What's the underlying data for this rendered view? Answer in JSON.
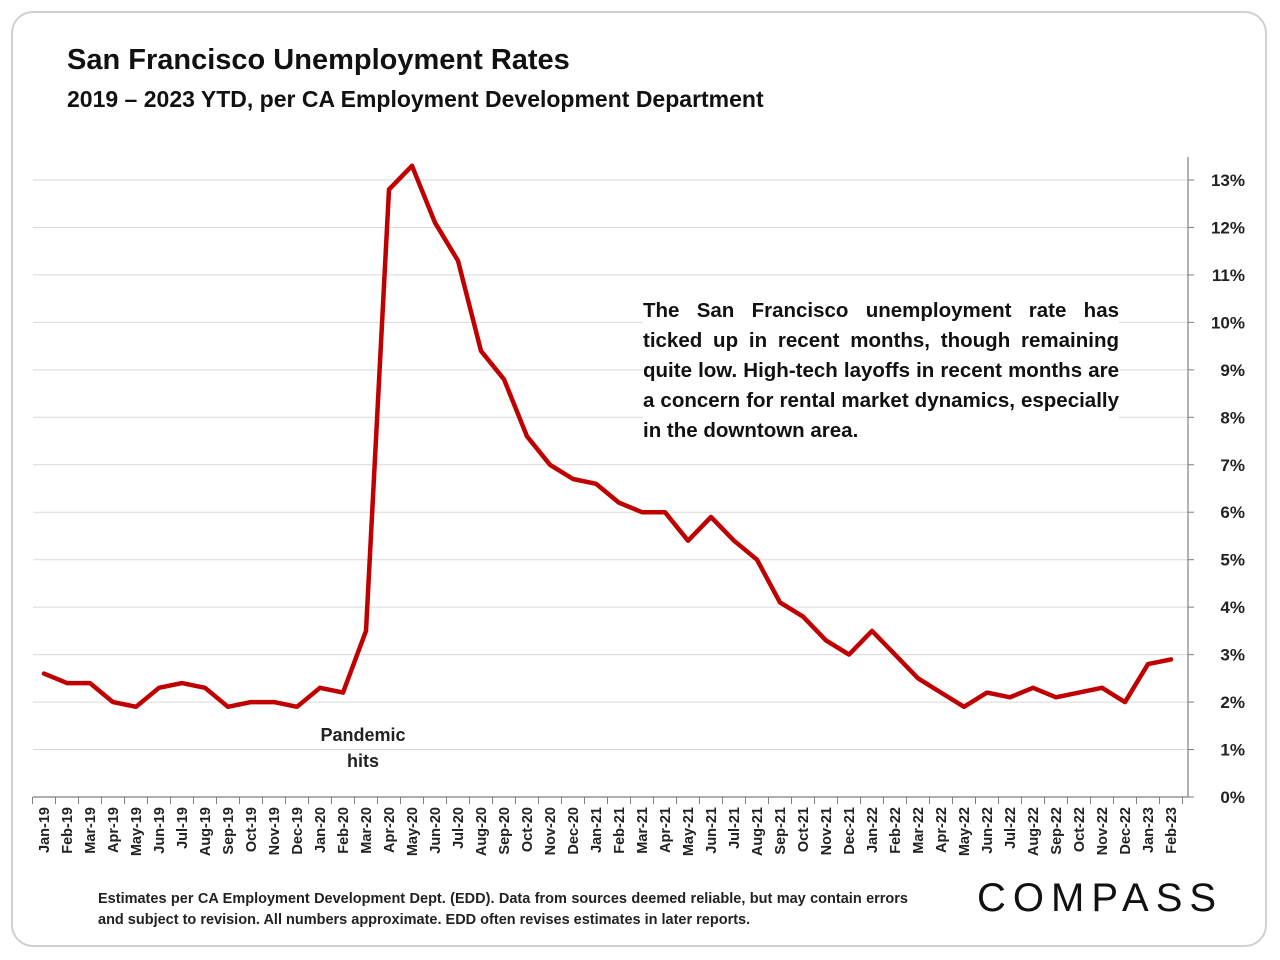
{
  "title": "San Francisco Unemployment Rates",
  "subtitle": "2019 – 2023 YTD, per CA Employment Development Department",
  "annotation": "The San Francisco unemployment rate has ticked up in recent months, though remaining quite low. High-tech layoffs in recent months are a concern for rental market dynamics, especially in the downtown area.",
  "pandemic_label_line1": "Pandemic",
  "pandemic_label_line2": "hits",
  "footnote": "Estimates per CA Employment Development Dept. (EDD). Data from sources deemed reliable, but may contain errors and subject to revision. All numbers approximate.  EDD often revises estimates in later reports.",
  "logo": "COMPASS",
  "colors": {
    "line": "#c00000",
    "grid": "#d9d9d9",
    "axis": "#7f7f7f"
  },
  "chart_data": {
    "type": "line",
    "title": "San Francisco Unemployment Rates",
    "subtitle": "2019 – 2023 YTD, per CA Employment Development Department",
    "xlabel": "",
    "ylabel": "",
    "y_axis_position": "right",
    "ylim": [
      0,
      13
    ],
    "y_ticks": [
      0,
      1,
      2,
      3,
      4,
      5,
      6,
      7,
      8,
      9,
      10,
      11,
      12,
      13
    ],
    "y_tick_labels": [
      "0%",
      "1%",
      "2%",
      "3%",
      "4%",
      "5%",
      "6%",
      "7%",
      "8%",
      "9%",
      "10%",
      "11%",
      "12%",
      "13%"
    ],
    "grid": true,
    "legend": "none",
    "categories": [
      "Jan-19",
      "Feb-19",
      "Mar-19",
      "Apr-19",
      "May-19",
      "Jun-19",
      "Jul-19",
      "Aug-19",
      "Sep-19",
      "Oct-19",
      "Nov-19",
      "Dec-19",
      "Jan-20",
      "Feb-20",
      "Mar-20",
      "Apr-20",
      "May-20",
      "Jun-20",
      "Jul-20",
      "Aug-20",
      "Sep-20",
      "Oct-20",
      "Nov-20",
      "Dec-20",
      "Jan-21",
      "Feb-21",
      "Mar-21",
      "Apr-21",
      "May-21",
      "Jun-21",
      "Jul-21",
      "Aug-21",
      "Sep-21",
      "Oct-21",
      "Nov-21",
      "Dec-21",
      "Jan-22",
      "Feb-22",
      "Mar-22",
      "Apr-22",
      "May-22",
      "Jun-22",
      "Jul-22",
      "Aug-22",
      "Sep-22",
      "Oct-22",
      "Nov-22",
      "Dec-22",
      "Jan-23",
      "Feb-23"
    ],
    "series": [
      {
        "values": [
          2.6,
          2.4,
          2.4,
          2.0,
          1.9,
          2.3,
          2.4,
          2.3,
          1.9,
          2.0,
          2.0,
          1.9,
          2.3,
          2.2,
          3.5,
          12.8,
          13.3,
          12.1,
          11.3,
          9.4,
          8.8,
          7.6,
          7.0,
          6.7,
          6.6,
          6.2,
          6.0,
          6.0,
          5.4,
          5.9,
          5.4,
          5.0,
          4.1,
          3.8,
          3.3,
          3.0,
          3.5,
          3.0,
          2.5,
          2.2,
          1.9,
          2.2,
          2.1,
          2.3,
          2.1,
          2.2,
          2.3,
          2.0,
          2.8,
          2.9
        ]
      }
    ]
  }
}
